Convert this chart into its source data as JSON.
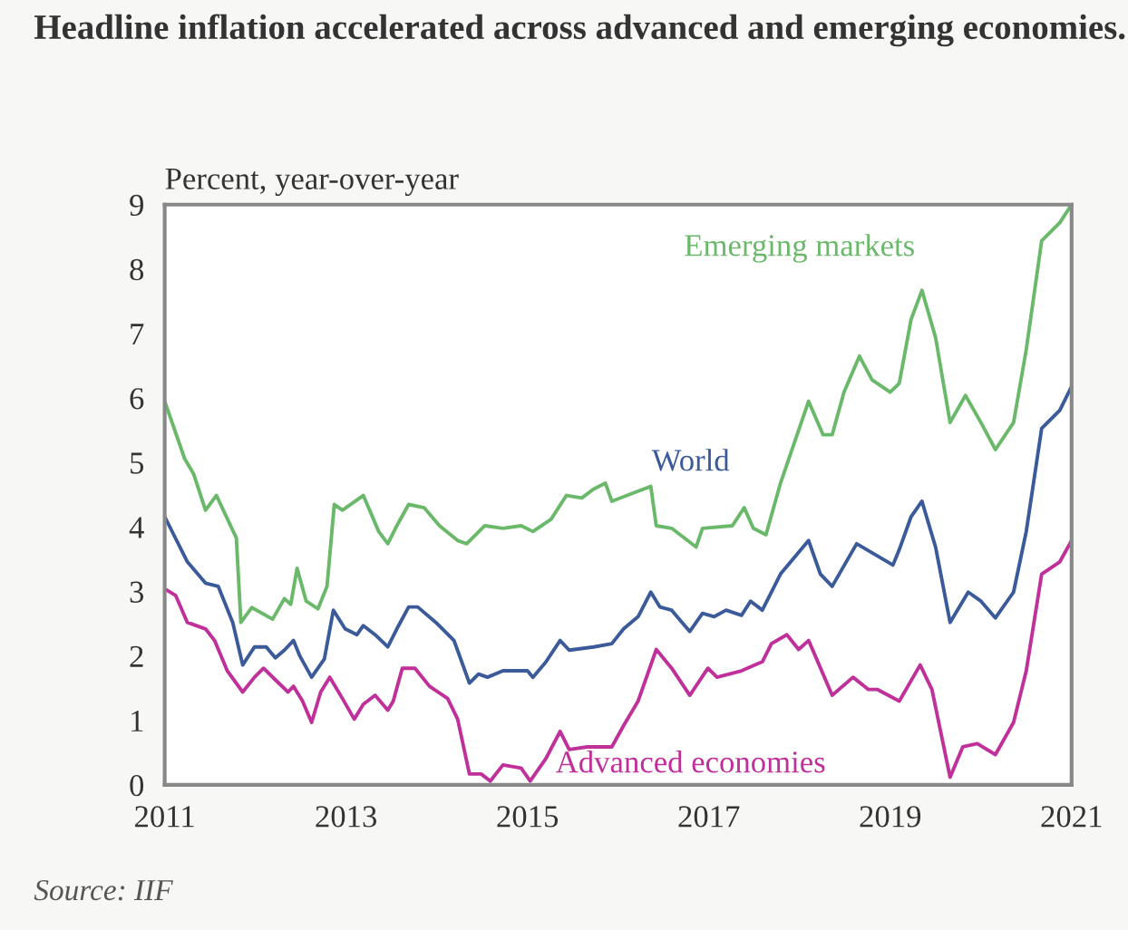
{
  "chart_data": {
    "type": "line",
    "title": "Headline inflation accelerated across advanced and emerging economies.",
    "ylabel": "Percent, year-over-year",
    "xlim": [
      2011,
      2021
    ],
    "xticks": [
      2011,
      2013,
      2015,
      2017,
      2019,
      2021
    ],
    "ylim": [
      0,
      9
    ],
    "yticks": [
      0,
      1,
      2,
      3,
      4,
      5,
      6,
      7,
      8,
      9
    ],
    "grid": false,
    "legend": false,
    "marker": "none",
    "line_style": "solid",
    "annotations": [
      "Source: IIF"
    ],
    "series": [
      {
        "name": "Emerging markets",
        "color": "#6ab96a",
        "x": [
          2011.0,
          2011.22,
          2011.32,
          2011.45,
          2011.57,
          2011.79,
          2011.84,
          2011.96,
          2012.19,
          2012.32,
          2012.39,
          2012.46,
          2012.56,
          2012.69,
          2012.79,
          2012.87,
          2012.96,
          2013.19,
          2013.36,
          2013.46,
          2013.56,
          2013.69,
          2013.86,
          2014.03,
          2014.23,
          2014.33,
          2014.53,
          2014.73,
          2014.93,
          2015.06,
          2015.26,
          2015.43,
          2015.6,
          2015.73,
          2015.86,
          2015.93,
          2016.19,
          2016.36,
          2016.42,
          2016.59,
          2016.86,
          2016.93,
          2017.26,
          2017.39,
          2017.49,
          2017.63,
          2017.79,
          2018.1,
          2018.26,
          2018.36,
          2018.49,
          2018.66,
          2018.8,
          2019.0,
          2019.1,
          2019.23,
          2019.35,
          2019.5,
          2019.66,
          2019.83,
          2020.0,
          2020.16,
          2020.36,
          2020.5,
          2020.67,
          2020.87,
          2021.0
        ],
        "values": [
          5.95,
          5.06,
          4.82,
          4.26,
          4.49,
          3.83,
          2.52,
          2.75,
          2.57,
          2.89,
          2.8,
          3.36,
          2.85,
          2.73,
          3.08,
          4.35,
          4.26,
          4.49,
          3.93,
          3.74,
          4.02,
          4.35,
          4.3,
          4.02,
          3.79,
          3.74,
          4.02,
          3.98,
          4.02,
          3.93,
          4.12,
          4.49,
          4.45,
          4.59,
          4.68,
          4.4,
          4.54,
          4.63,
          4.02,
          3.98,
          3.69,
          3.98,
          4.02,
          4.3,
          3.98,
          3.88,
          4.68,
          5.95,
          5.43,
          5.43,
          6.09,
          6.65,
          6.28,
          6.09,
          6.23,
          7.22,
          7.67,
          6.94,
          5.62,
          6.04,
          5.62,
          5.2,
          5.62,
          6.75,
          8.44,
          8.72,
          9.0
        ]
      },
      {
        "name": "World",
        "color": "#3a5a9a",
        "x": [
          2011.0,
          2011.25,
          2011.45,
          2011.59,
          2011.75,
          2011.86,
          2011.99,
          2012.12,
          2012.22,
          2012.32,
          2012.42,
          2012.49,
          2012.62,
          2012.76,
          2012.86,
          2012.99,
          2013.12,
          2013.19,
          2013.32,
          2013.46,
          2013.56,
          2013.69,
          2013.79,
          2013.99,
          2014.19,
          2014.36,
          2014.46,
          2014.56,
          2014.73,
          2015.0,
          2015.06,
          2015.2,
          2015.36,
          2015.46,
          2015.73,
          2015.93,
          2016.06,
          2016.22,
          2016.36,
          2016.46,
          2016.59,
          2016.79,
          2016.93,
          2017.06,
          2017.19,
          2017.36,
          2017.46,
          2017.59,
          2017.79,
          2018.1,
          2018.23,
          2018.36,
          2018.63,
          2018.8,
          2019.03,
          2019.1,
          2019.23,
          2019.35,
          2019.5,
          2019.66,
          2019.86,
          2020.0,
          2020.16,
          2020.36,
          2020.5,
          2020.67,
          2020.87,
          2021.0
        ],
        "values": [
          4.16,
          3.46,
          3.13,
          3.08,
          2.52,
          1.86,
          2.14,
          2.14,
          1.97,
          2.09,
          2.24,
          2.0,
          1.67,
          1.95,
          2.71,
          2.42,
          2.33,
          2.47,
          2.33,
          2.14,
          2.42,
          2.76,
          2.76,
          2.52,
          2.24,
          1.58,
          1.72,
          1.67,
          1.77,
          1.77,
          1.67,
          1.9,
          2.24,
          2.09,
          2.14,
          2.19,
          2.42,
          2.61,
          2.99,
          2.76,
          2.71,
          2.38,
          2.66,
          2.61,
          2.71,
          2.63,
          2.85,
          2.71,
          3.27,
          3.79,
          3.27,
          3.08,
          3.74,
          3.6,
          3.41,
          3.65,
          4.16,
          4.4,
          3.69,
          2.52,
          2.99,
          2.85,
          2.59,
          2.99,
          3.93,
          5.53,
          5.81,
          6.18
        ]
      },
      {
        "name": "Advanced economies",
        "color": "#c0309a",
        "x": [
          2011.0,
          2011.12,
          2011.25,
          2011.45,
          2011.55,
          2011.69,
          2011.86,
          2011.99,
          2012.09,
          2012.22,
          2012.36,
          2012.42,
          2012.52,
          2012.62,
          2012.72,
          2012.82,
          2012.96,
          2013.09,
          2013.19,
          2013.32,
          2013.46,
          2013.52,
          2013.62,
          2013.76,
          2013.92,
          2014.12,
          2014.23,
          2014.36,
          2014.49,
          2014.59,
          2014.73,
          2014.93,
          2015.03,
          2015.2,
          2015.36,
          2015.46,
          2015.66,
          2015.93,
          2016.06,
          2016.22,
          2016.42,
          2016.59,
          2016.79,
          2016.99,
          2017.09,
          2017.36,
          2017.59,
          2017.69,
          2017.86,
          2017.99,
          2018.1,
          2018.36,
          2018.59,
          2018.76,
          2018.86,
          2019.1,
          2019.33,
          2019.46,
          2019.66,
          2019.8,
          2019.96,
          2020.16,
          2020.36,
          2020.5,
          2020.67,
          2020.87,
          2021.0
        ],
        "values": [
          3.04,
          2.94,
          2.52,
          2.42,
          2.24,
          1.77,
          1.44,
          1.67,
          1.81,
          1.63,
          1.44,
          1.53,
          1.3,
          0.97,
          1.44,
          1.67,
          1.34,
          1.02,
          1.25,
          1.39,
          1.16,
          1.3,
          1.81,
          1.81,
          1.53,
          1.34,
          1.02,
          0.17,
          0.17,
          0.06,
          0.31,
          0.26,
          0.06,
          0.4,
          0.83,
          0.55,
          0.59,
          0.59,
          0.92,
          1.3,
          2.1,
          1.81,
          1.39,
          1.81,
          1.67,
          1.77,
          1.91,
          2.19,
          2.33,
          2.1,
          2.24,
          1.39,
          1.67,
          1.48,
          1.48,
          1.3,
          1.86,
          1.48,
          0.12,
          0.59,
          0.64,
          0.47,
          0.97,
          1.77,
          3.27,
          3.46,
          3.79
        ]
      }
    ]
  }
}
